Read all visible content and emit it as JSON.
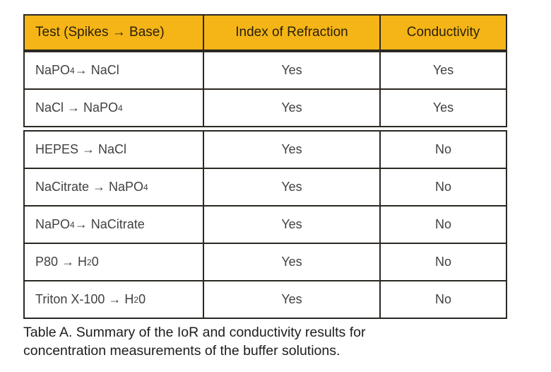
{
  "colors": {
    "header_bg": "#F5B517",
    "border": "#2B2722",
    "header_text": "#2A2108",
    "body_text": "#414042",
    "caption_text": "#1D1D1B",
    "page_bg": "#FFFFFF"
  },
  "table": {
    "columns": [
      {
        "key": "test",
        "label": "Test (Spikes → Base)",
        "align": "left"
      },
      {
        "key": "ior",
        "label": "Index of Refraction",
        "align": "center"
      },
      {
        "key": "cond",
        "label": "Conductivity",
        "align": "center"
      }
    ],
    "sections": [
      {
        "rows": [
          {
            "test": [
              {
                "t": "NaPO"
              },
              {
                "t": "4",
                "sub": true
              },
              {
                "t": " → NaCl"
              }
            ],
            "ior": "Yes",
            "cond": "Yes"
          },
          {
            "test": [
              {
                "t": "NaCl → NaPO"
              },
              {
                "t": "4",
                "sub": true
              }
            ],
            "ior": "Yes",
            "cond": "Yes"
          }
        ]
      },
      {
        "rows": [
          {
            "test": [
              {
                "t": "HEPES → NaCl"
              }
            ],
            "ior": "Yes",
            "cond": "No"
          },
          {
            "test": [
              {
                "t": "NaCitrate → NaPO"
              },
              {
                "t": "4",
                "sub": true
              }
            ],
            "ior": "Yes",
            "cond": "No"
          },
          {
            "test": [
              {
                "t": "NaPO"
              },
              {
                "t": "4",
                "sub": true
              },
              {
                "t": " → NaCitrate"
              }
            ],
            "ior": "Yes",
            "cond": "No"
          },
          {
            "test": [
              {
                "t": "P80 → H"
              },
              {
                "t": "2",
                "sub": true
              },
              {
                "t": "0"
              }
            ],
            "ior": "Yes",
            "cond": "No"
          },
          {
            "test": [
              {
                "t": "Triton X-100 → H"
              },
              {
                "t": "2",
                "sub": true
              },
              {
                "t": "0"
              }
            ],
            "ior": "Yes",
            "cond": "No"
          }
        ]
      }
    ]
  },
  "caption": "Table A. Summary of the IoR and conductivity results for concentration measurements of the buffer solutions."
}
